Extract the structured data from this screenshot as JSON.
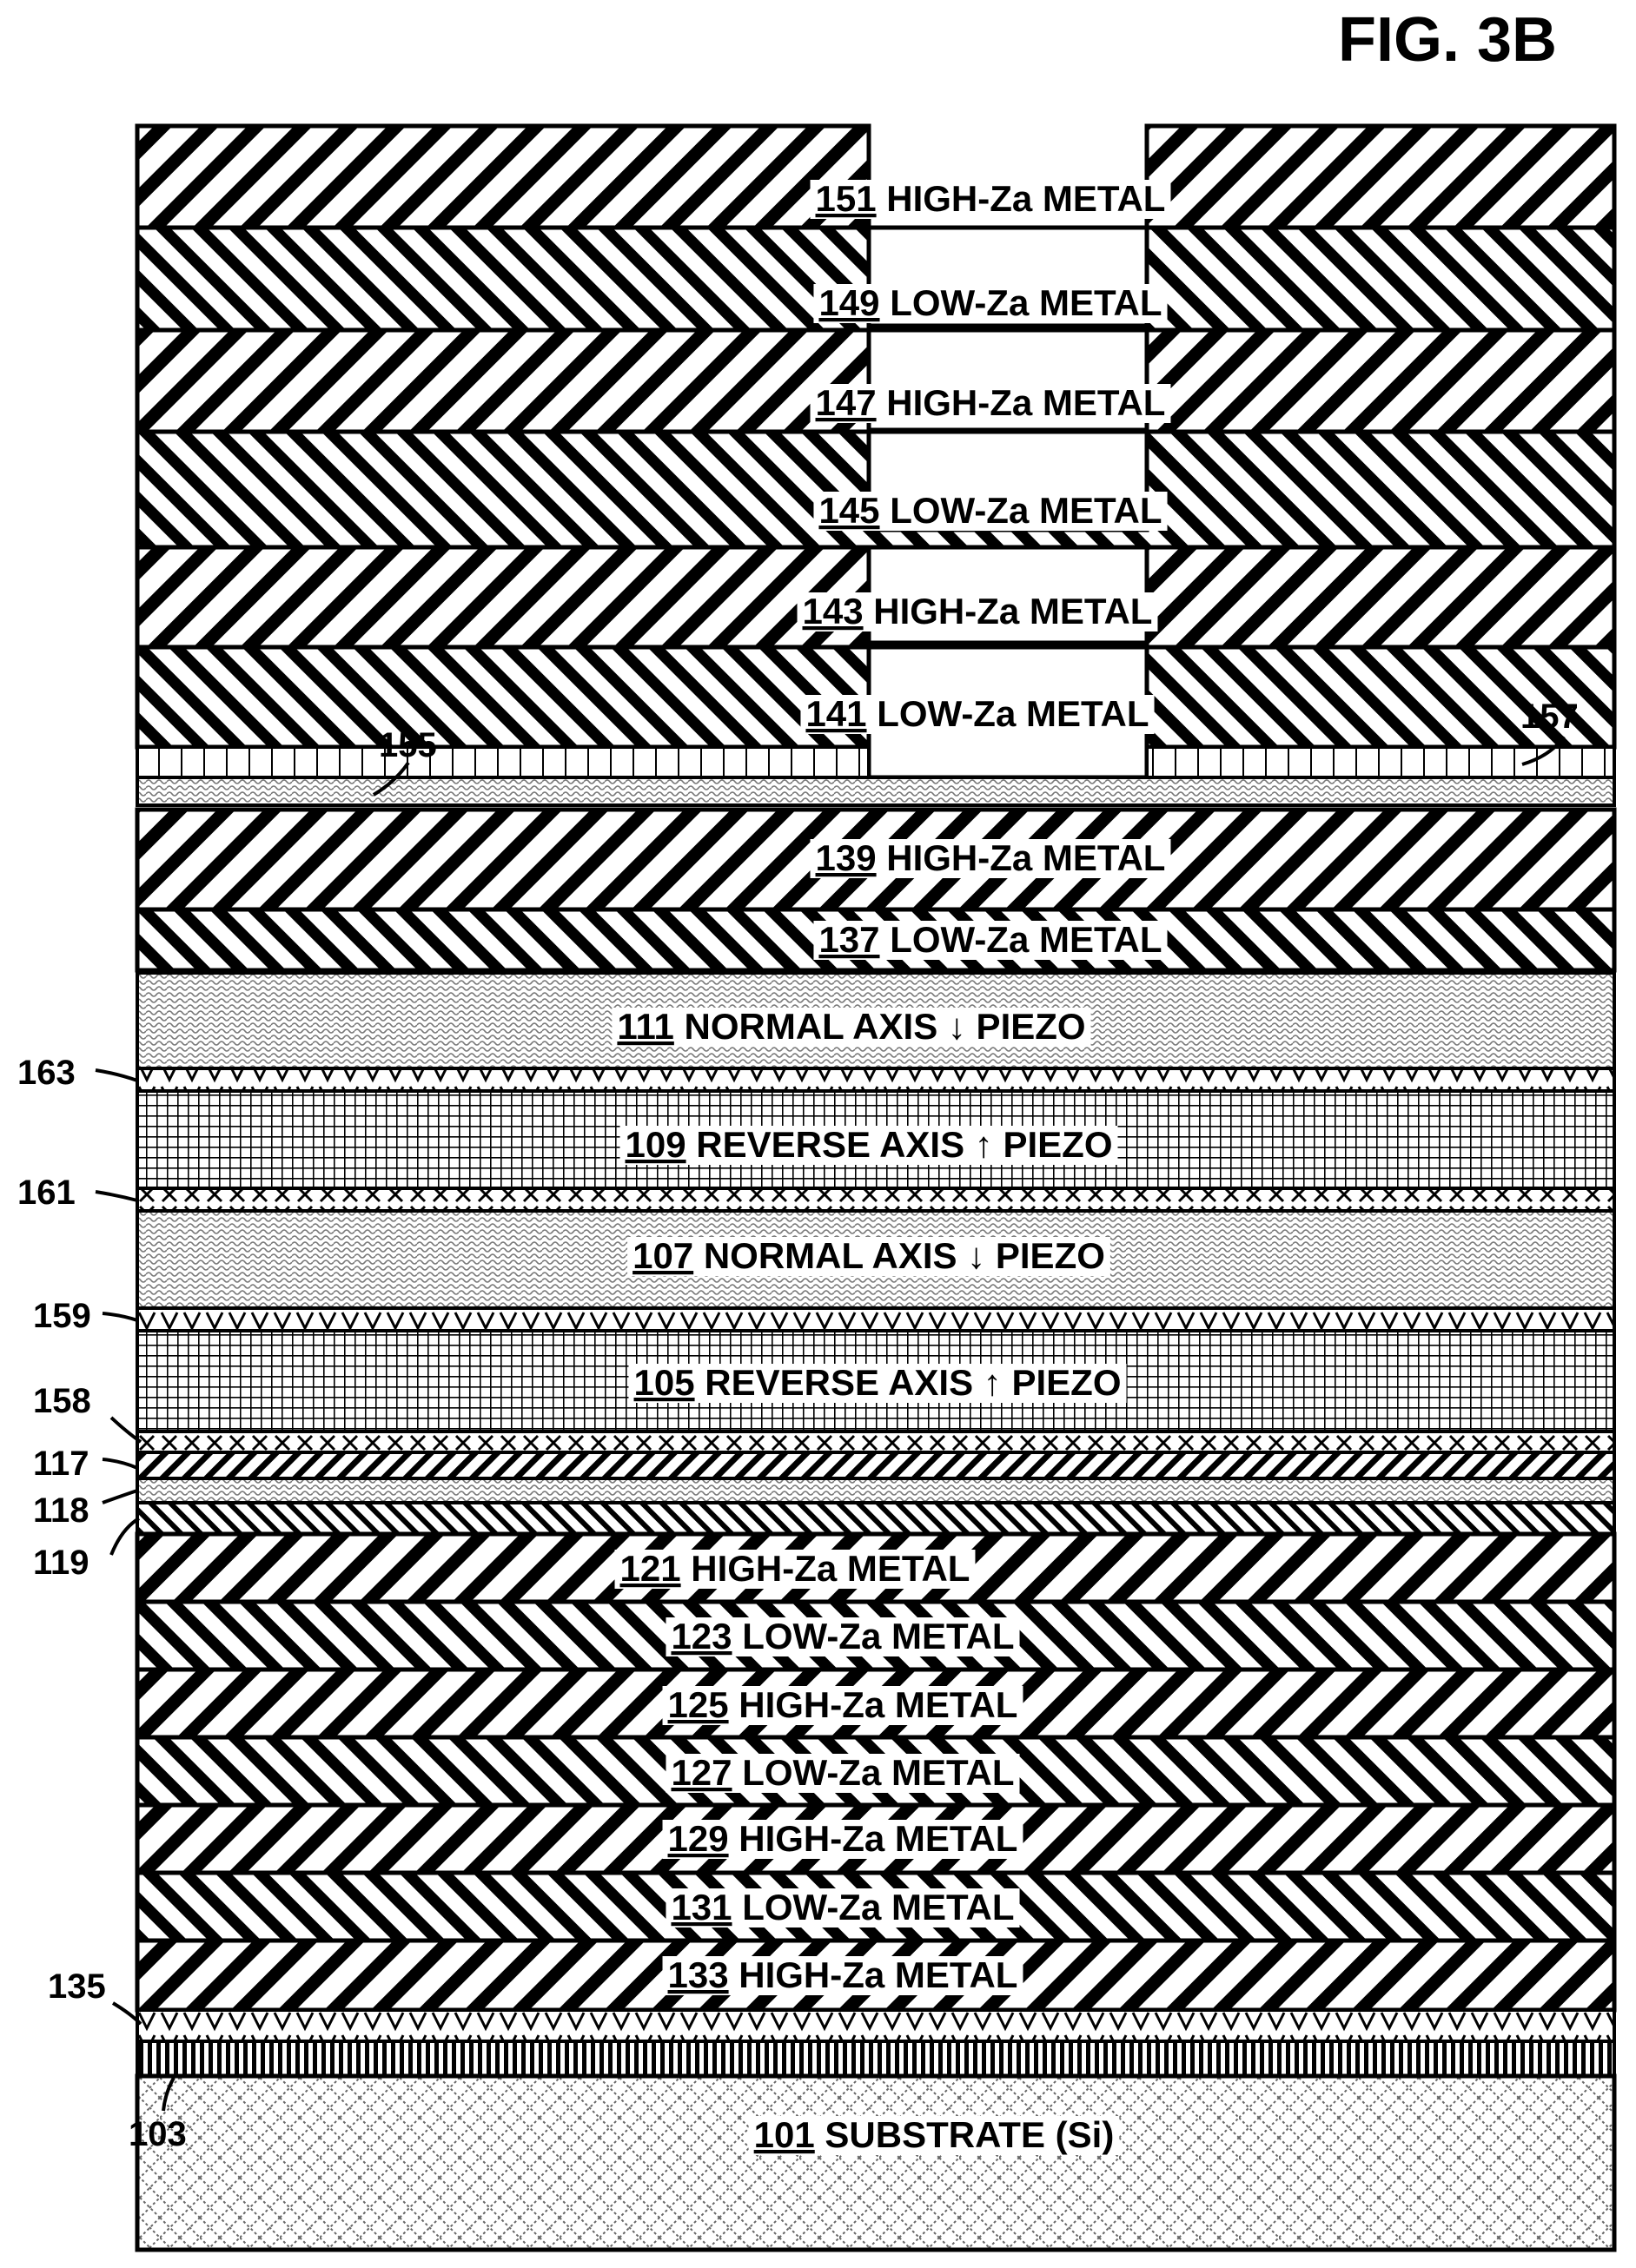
{
  "figure_title": "FIG. 3B",
  "layers": [
    {
      "id": "151",
      "num": "151",
      "text": " HIGH-Za METAL",
      "pattern": "diag-back-wide"
    },
    {
      "id": "149",
      "num": "149",
      "text": " LOW-Za METAL",
      "pattern": "diag-fwd"
    },
    {
      "id": "147",
      "num": "147",
      "text": " HIGH-Za METAL",
      "pattern": "diag-back-wide"
    },
    {
      "id": "145",
      "num": "145",
      "text": " LOW-Za METAL",
      "pattern": "diag-fwd"
    },
    {
      "id": "143",
      "num": "143",
      "text": " HIGH-Za METAL",
      "pattern": "diag-back-wide"
    },
    {
      "id": "141",
      "num": "141",
      "text": " LOW-Za METAL",
      "pattern": "diag-fwd"
    },
    {
      "id": "139",
      "num": "139",
      "text": " HIGH-Za METAL",
      "pattern": "diag-back-wide"
    },
    {
      "id": "137",
      "num": "137",
      "text": " LOW-Za METAL",
      "pattern": "diag-fwd"
    },
    {
      "id": "111",
      "num": "111",
      "text": " NORMAL AXIS ",
      "arrow": "down",
      "text2": " PIEZO",
      "pattern": "squiggle"
    },
    {
      "id": "109",
      "num": "109",
      "text": " REVERSE AXIS ",
      "arrow": "up",
      "text2": " PIEZO",
      "pattern": "grid"
    },
    {
      "id": "107",
      "num": "107",
      "text": " NORMAL AXIS ",
      "arrow": "down",
      "text2": " PIEZO",
      "pattern": "squiggle"
    },
    {
      "id": "105",
      "num": "105",
      "text": " REVERSE AXIS ",
      "arrow": "up",
      "text2": " PIEZO",
      "pattern": "grid"
    },
    {
      "id": "121",
      "num": "121",
      "text": " HIGH-Za METAL",
      "pattern": "diag-back-wide"
    },
    {
      "id": "123",
      "num": "123",
      "text": " LOW-Za METAL",
      "pattern": "diag-fwd"
    },
    {
      "id": "125",
      "num": "125",
      "text": " HIGH-Za METAL",
      "pattern": "diag-back-wide"
    },
    {
      "id": "127",
      "num": "127",
      "text": " LOW-Za METAL",
      "pattern": "diag-fwd"
    },
    {
      "id": "129",
      "num": "129",
      "text": " HIGH-Za METAL",
      "pattern": "diag-back-wide"
    },
    {
      "id": "131",
      "num": "131",
      "text": " LOW-Za METAL",
      "pattern": "diag-fwd"
    },
    {
      "id": "133",
      "num": "133",
      "text": " HIGH-Za METAL",
      "pattern": "diag-back-wide"
    },
    {
      "id": "101",
      "num": "101",
      "text": " SUBSTRATE (Si)",
      "pattern": "substrate"
    }
  ],
  "thin_layers": [
    {
      "id": "155",
      "pattern": "bricks"
    },
    {
      "id": "157",
      "pattern": "bricks"
    },
    {
      "id": "163",
      "pattern": "vees"
    },
    {
      "id": "161",
      "pattern": "exes"
    },
    {
      "id": "159",
      "pattern": "vees"
    },
    {
      "id": "158",
      "pattern": "exes"
    },
    {
      "id": "117",
      "pattern": "diag-back"
    },
    {
      "id": "118",
      "pattern": "squiggle"
    },
    {
      "id": "119",
      "pattern": "diag-fwd-dense"
    },
    {
      "id": "135",
      "pattern": "vees"
    },
    {
      "id": "103",
      "pattern": "vlines"
    }
  ],
  "references": [
    "155",
    "157",
    "163",
    "161",
    "159",
    "158",
    "117",
    "118",
    "119",
    "135",
    "103"
  ]
}
